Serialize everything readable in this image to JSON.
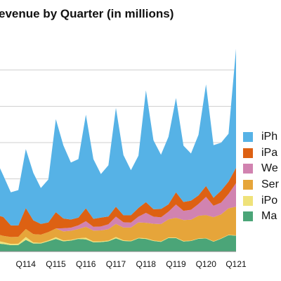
{
  "chart_data": {
    "type": "area",
    "stacked": true,
    "title": "evenue by Quarter (in millions)",
    "xlabel": "",
    "ylabel": "",
    "x_tick_labels": [
      "3",
      "Q114",
      "Q115",
      "Q116",
      "Q117",
      "Q118",
      "Q119",
      "Q120",
      "Q121"
    ],
    "x_tick_quarter_index": [
      0,
      4,
      8,
      12,
      16,
      20,
      24,
      28,
      32
    ],
    "ylim": [
      0,
      120000
    ],
    "grid": {
      "horizontal": true,
      "vertical": false,
      "y_step": 20000
    },
    "legend_position": "right",
    "x": [
      "Q113",
      "Q213",
      "Q313",
      "Q413",
      "Q114",
      "Q214",
      "Q314",
      "Q414",
      "Q115",
      "Q215",
      "Q315",
      "Q415",
      "Q116",
      "Q216",
      "Q316",
      "Q416",
      "Q117",
      "Q217",
      "Q317",
      "Q417",
      "Q118",
      "Q218",
      "Q318",
      "Q418",
      "Q119",
      "Q219",
      "Q319",
      "Q419",
      "Q120",
      "Q220",
      "Q320",
      "Q420",
      "Q121"
    ],
    "series": [
      {
        "name": "Ma",
        "color": "#4ba578",
        "values": [
          4500,
          4100,
          3500,
          3600,
          6400,
          4400,
          4400,
          5600,
          6900,
          5600,
          6000,
          6900,
          6700,
          5100,
          5200,
          5600,
          7200,
          5800,
          5600,
          7200,
          6900,
          5800,
          5300,
          7400,
          7400,
          5500,
          5800,
          7000,
          7200,
          5400,
          7000,
          9000,
          8700
        ]
      },
      {
        "name": "iPo",
        "color": "#efe27a",
        "values": [
          1500,
          1100,
          700,
          700,
          1600,
          600,
          400,
          500,
          1000,
          500,
          400,
          400,
          900,
          400,
          400,
          400,
          800,
          400,
          300,
          300,
          400,
          300,
          300,
          300,
          300,
          300,
          200,
          200,
          200,
          200,
          200,
          200,
          200
        ]
      },
      {
        "name": "Ser",
        "color": "#e6a53a",
        "values": [
          3700,
          3400,
          3800,
          3800,
          4400,
          4600,
          4500,
          4600,
          4800,
          5000,
          5000,
          5100,
          6000,
          6000,
          6000,
          6300,
          7200,
          7000,
          7300,
          8500,
          8500,
          9200,
          9500,
          10000,
          10900,
          11500,
          11500,
          12500,
          12700,
          13300,
          13200,
          14600,
          15800
        ]
      },
      {
        "name": "We",
        "color": "#d183b0",
        "values": [
          0,
          0,
          0,
          0,
          0,
          0,
          0,
          0,
          0,
          1700,
          1700,
          2000,
          3100,
          2100,
          2200,
          2700,
          4000,
          2900,
          2700,
          3200,
          5500,
          3900,
          3700,
          4200,
          7300,
          5100,
          5500,
          6500,
          10000,
          6300,
          6500,
          7900,
          13000
        ]
      },
      {
        "name": "iPa",
        "color": "#dd6113",
        "values": [
          10600,
          10400,
          6400,
          6200,
          11500,
          7600,
          5900,
          5300,
          9000,
          5400,
          4500,
          4300,
          7100,
          4400,
          4900,
          4300,
          5500,
          3900,
          4100,
          4800,
          5900,
          4100,
          4600,
          4100,
          6700,
          4900,
          5000,
          4700,
          6000,
          4400,
          6600,
          6800,
          8400
        ]
      },
      {
        "name": "iPh",
        "color": "#56b2e6",
        "values": [
          30700,
          22900,
          18200,
          19500,
          32500,
          26100,
          19800,
          23700,
          51200,
          40300,
          31400,
          32200,
          51600,
          32900,
          24000,
          28200,
          54400,
          33200,
          24800,
          28800,
          61600,
          38000,
          29900,
          37200,
          52000,
          31000,
          26000,
          33400,
          56000,
          29000,
          26400,
          26400,
          65600
        ]
      }
    ]
  }
}
